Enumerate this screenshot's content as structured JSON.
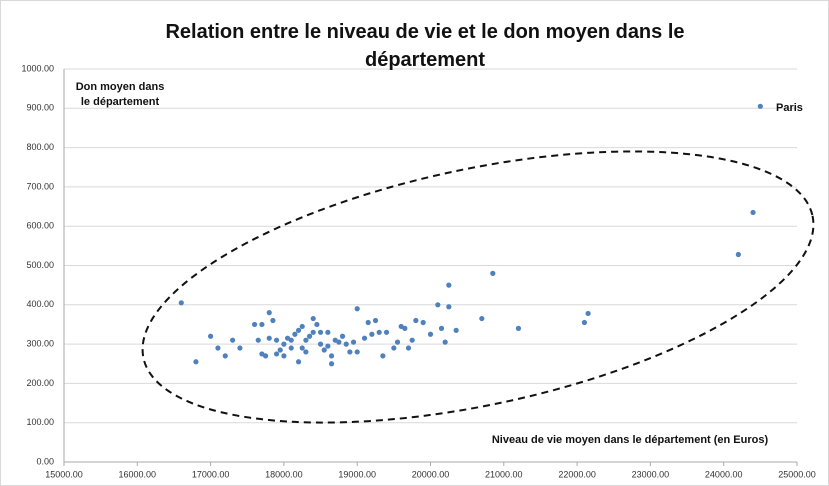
{
  "chart_data": {
    "type": "scatter",
    "title": "Relation entre le niveau de vie et le don moyen dans le département",
    "y_label": "Don moyen dans le département",
    "x_label": "Niveau de vie moyen dans le département (en Euros)",
    "annotation": "Paris",
    "color": "#4f81bd",
    "grid": true,
    "xlim": [
      15000,
      25000
    ],
    "ylim": [
      0,
      1000
    ],
    "xticks": [
      {
        "value": 15000,
        "label": "15000.00"
      },
      {
        "value": 16000,
        "label": "16000.00"
      },
      {
        "value": 17000,
        "label": "17000.00"
      },
      {
        "value": 18000,
        "label": "18000.00"
      },
      {
        "value": 19000,
        "label": "19000.00"
      },
      {
        "value": 20000,
        "label": "20000.00"
      },
      {
        "value": 21000,
        "label": "21000.00"
      },
      {
        "value": 22000,
        "label": "22000.00"
      },
      {
        "value": 23000,
        "label": "23000.00"
      },
      {
        "value": 24000,
        "label": "24000.00"
      },
      {
        "value": 25000,
        "label": "25000.00"
      }
    ],
    "yticks": [
      {
        "value": 0,
        "label": "0.00"
      },
      {
        "value": 100,
        "label": "100.00"
      },
      {
        "value": 200,
        "label": "200.00"
      },
      {
        "value": 300,
        "label": "300.00"
      },
      {
        "value": 400,
        "label": "400.00"
      },
      {
        "value": 500,
        "label": "500.00"
      },
      {
        "value": 600,
        "label": "600.00"
      },
      {
        "value": 700,
        "label": "700.00"
      },
      {
        "value": 800,
        "label": "800.00"
      },
      {
        "value": 900,
        "label": "900.00"
      },
      {
        "value": 1000,
        "label": "1000.00"
      }
    ],
    "x": [
      16600,
      16800,
      17000,
      17100,
      17200,
      17300,
      17400,
      17600,
      17650,
      17700,
      17700,
      17750,
      17800,
      17800,
      17850,
      17900,
      17900,
      17950,
      18000,
      18000,
      18050,
      18100,
      18100,
      18150,
      18200,
      18200,
      18250,
      18250,
      18300,
      18300,
      18350,
      18400,
      18400,
      18450,
      18500,
      18500,
      18550,
      18600,
      18600,
      18650,
      18650,
      18700,
      18750,
      18800,
      18850,
      18900,
      18950,
      19000,
      19000,
      19100,
      19150,
      19200,
      19250,
      19300,
      19350,
      19400,
      19500,
      19550,
      19600,
      19650,
      19700,
      19750,
      19800,
      19900,
      20000,
      20100,
      20150,
      20200,
      20250,
      20250,
      20350,
      20700,
      20850,
      21200,
      22100,
      22150,
      24200,
      24400,
      24500
    ],
    "values": [
      405,
      255,
      320,
      290,
      270,
      310,
      290,
      350,
      310,
      350,
      275,
      270,
      380,
      315,
      360,
      275,
      310,
      285,
      300,
      270,
      315,
      310,
      290,
      325,
      255,
      335,
      290,
      345,
      280,
      310,
      320,
      365,
      330,
      350,
      300,
      330,
      285,
      330,
      295,
      270,
      250,
      310,
      305,
      320,
      300,
      280,
      305,
      390,
      280,
      315,
      355,
      325,
      360,
      330,
      270,
      330,
      290,
      305,
      345,
      340,
      290,
      310,
      360,
      355,
      325,
      400,
      340,
      305,
      395,
      450,
      335,
      365,
      480,
      340,
      355,
      378,
      528,
      635,
      905
    ]
  }
}
